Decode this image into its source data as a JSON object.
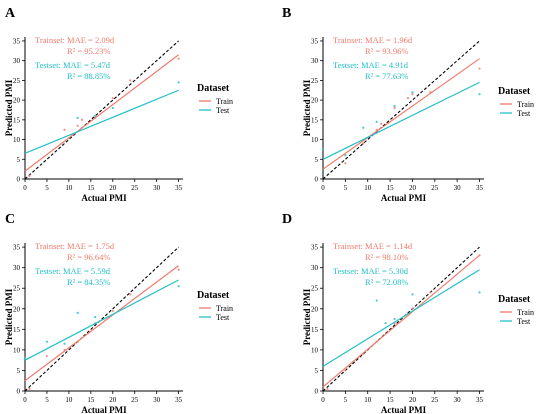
{
  "figure": {
    "legend_title": "Dataset",
    "legend_items": [
      {
        "label": "Train",
        "color": "#f07b6e"
      },
      {
        "label": "Test",
        "color": "#22bfc6"
      }
    ]
  },
  "colors": {
    "train": "#f07b6e",
    "test": "#22bfc6",
    "identity": "#000000",
    "axis": "#000000"
  },
  "chart_data": [
    {
      "panel": "A",
      "type": "scatter",
      "xlabel": "Actual PMI",
      "ylabel": "Predicted PMI",
      "xlim": [
        0,
        36
      ],
      "ylim": [
        0,
        36
      ],
      "xticks": [
        0,
        5,
        10,
        15,
        20,
        25,
        30,
        35
      ],
      "yticks": [
        0,
        5,
        10,
        15,
        20,
        25,
        30,
        35
      ],
      "grid": false,
      "legend_position": "right",
      "identity_line": true,
      "annotations": [
        {
          "lines": [
            "Trainset: MAE = 2.09d",
            "R² = 95.23%"
          ],
          "series": "Train"
        },
        {
          "lines": [
            "Testset:  MAE = 5.47d",
            "R² = 88.85%"
          ],
          "series": "Test"
        }
      ],
      "series": [
        {
          "name": "Train",
          "fit": [
            [
              0,
              2.0
            ],
            [
              35,
              31.5
            ]
          ],
          "points": [
            [
              1,
              0.8
            ],
            [
              9,
              12.5
            ],
            [
              12,
              13.5
            ],
            [
              13,
              15.0
            ],
            [
              16,
              15.5
            ],
            [
              20,
              20.5
            ],
            [
              24,
              25.0
            ],
            [
              35,
              30.5
            ]
          ]
        },
        {
          "name": "Test",
          "fit": [
            [
              0,
              6.5
            ],
            [
              35,
              22.5
            ]
          ],
          "points": [
            [
              12,
              15.5
            ],
            [
              16,
              16.0
            ],
            [
              20,
              18.0
            ],
            [
              35,
              24.5
            ]
          ]
        }
      ]
    },
    {
      "panel": "B",
      "type": "scatter",
      "xlabel": "Actual PMI",
      "ylabel": "Predicted PMI",
      "xlim": [
        0,
        36
      ],
      "ylim": [
        0,
        36
      ],
      "xticks": [
        0,
        5,
        10,
        15,
        20,
        25,
        30,
        35
      ],
      "yticks": [
        0,
        5,
        10,
        15,
        20,
        25,
        30,
        35
      ],
      "grid": false,
      "legend_position": "right",
      "identity_line": true,
      "annotations": [
        {
          "lines": [
            "Trainset: MAE = 1.96d",
            "R² = 93.96%"
          ],
          "series": "Train"
        },
        {
          "lines": [
            "Testset:  MAE = 4.91d",
            "R² = 77.63%"
          ],
          "series": "Test"
        }
      ],
      "series": [
        {
          "name": "Train",
          "fit": [
            [
              0,
              2.5
            ],
            [
              35,
              30.5
            ]
          ],
          "points": [
            [
              5,
              4.0
            ],
            [
              9,
              9.0
            ],
            [
              12,
              12.5
            ],
            [
              13,
              14.0
            ],
            [
              16,
              18.0
            ],
            [
              19,
              20.5
            ],
            [
              20,
              21.5
            ],
            [
              24,
              22.0
            ],
            [
              35,
              28.0
            ]
          ]
        },
        {
          "name": "Test",
          "fit": [
            [
              0,
              5.0
            ],
            [
              35,
              24.5
            ]
          ],
          "points": [
            [
              0,
              7.5
            ],
            [
              5,
              6.0
            ],
            [
              9,
              13.0
            ],
            [
              12,
              14.5
            ],
            [
              16,
              18.5
            ],
            [
              20,
              22.0
            ],
            [
              35,
              21.5
            ]
          ]
        }
      ]
    },
    {
      "panel": "C",
      "type": "scatter",
      "xlabel": "Actual PMI",
      "ylabel": "Predicted PMI",
      "xlim": [
        0,
        36
      ],
      "ylim": [
        0,
        36
      ],
      "xticks": [
        0,
        5,
        10,
        15,
        20,
        25,
        30,
        35
      ],
      "yticks": [
        0,
        5,
        10,
        15,
        20,
        25,
        30,
        35
      ],
      "grid": false,
      "legend_position": "right",
      "identity_line": true,
      "annotations": [
        {
          "lines": [
            "Trainset: MAE = 1.75d",
            "R² = 96.64%"
          ],
          "series": "Train"
        },
        {
          "lines": [
            "Testset:  MAE = 5.59d",
            "R² = 84.35%"
          ],
          "series": "Test"
        }
      ],
      "series": [
        {
          "name": "Train",
          "fit": [
            [
              0,
              2.5
            ],
            [
              35,
              30.5
            ]
          ],
          "points": [
            [
              1,
              0.5
            ],
            [
              5,
              8.5
            ],
            [
              9,
              10.0
            ],
            [
              12,
              12.0
            ],
            [
              16,
              16.5
            ],
            [
              20,
              19.5
            ],
            [
              24,
              23.5
            ],
            [
              35,
              29.5
            ]
          ]
        },
        {
          "name": "Test",
          "fit": [
            [
              0,
              7.5
            ],
            [
              35,
              27.0
            ]
          ],
          "points": [
            [
              0,
              8.0
            ],
            [
              5,
              12.0
            ],
            [
              9,
              11.5
            ],
            [
              12,
              19.0
            ],
            [
              16,
              18.0
            ],
            [
              35,
              25.5
            ]
          ]
        }
      ]
    },
    {
      "panel": "D",
      "type": "scatter",
      "xlabel": "Actual PMI",
      "ylabel": "Predicted PMI",
      "xlim": [
        0,
        36
      ],
      "ylim": [
        0,
        36
      ],
      "xticks": [
        0,
        5,
        10,
        15,
        20,
        25,
        30,
        35
      ],
      "yticks": [
        0,
        5,
        10,
        15,
        20,
        25,
        30,
        35
      ],
      "grid": false,
      "legend_position": "right",
      "identity_line": true,
      "annotations": [
        {
          "lines": [
            "Trainset: MAE = 1.14d",
            "R² = 98.10%"
          ],
          "series": "Train"
        },
        {
          "lines": [
            "Testset:  MAE = 5.30d",
            "R² = 72.08%"
          ],
          "series": "Test"
        }
      ],
      "series": [
        {
          "name": "Train",
          "fit": [
            [
              0,
              1.0
            ],
            [
              35,
              33.0
            ]
          ],
          "points": [
            [
              1,
              0.5
            ],
            [
              5,
              5.0
            ],
            [
              9,
              9.0
            ],
            [
              12,
              12.0
            ],
            [
              16,
              16.5
            ],
            [
              20,
              20.0
            ],
            [
              24,
              24.0
            ],
            [
              35,
              33.0
            ]
          ]
        },
        {
          "name": "Test",
          "fit": [
            [
              0,
              6.0
            ],
            [
              35,
              29.5
            ]
          ],
          "points": [
            [
              12,
              22.0
            ],
            [
              14,
              16.5
            ],
            [
              16,
              17.5
            ],
            [
              20,
              23.5
            ],
            [
              35,
              24.0
            ]
          ]
        }
      ]
    }
  ]
}
